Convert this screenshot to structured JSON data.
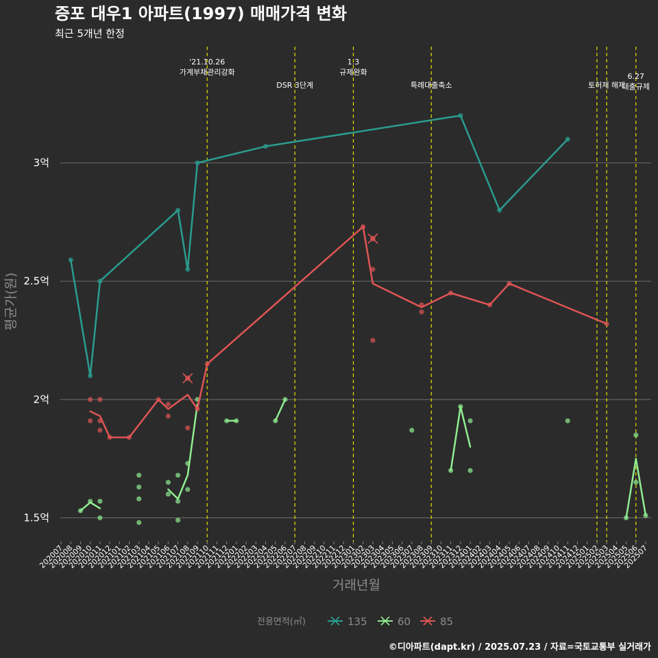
{
  "chart_data": {
    "type": "line",
    "title": "증포 대우1 아파트(1997) 매매가격 변화",
    "subtitle": "최근 5개년 한정",
    "xlabel": "거래년월",
    "ylabel": "평균가(원)",
    "caption": "©디아파트(dapt.kr) / 2025.07.23 / 자료=국토교통부 실거래가",
    "ylim": [
      1.4,
      3.5
    ],
    "yticks": [
      {
        "value": 1.5,
        "label": "1.5억"
      },
      {
        "value": 2.0,
        "label": "2억"
      },
      {
        "value": 2.5,
        "label": "2.5억"
      },
      {
        "value": 3.0,
        "label": "3억"
      }
    ],
    "months": [
      "202007",
      "202008",
      "202009",
      "202010",
      "202011",
      "202012",
      "202101",
      "202102",
      "202103",
      "202104",
      "202105",
      "202106",
      "202107",
      "202108",
      "202109",
      "202110",
      "202111",
      "202112",
      "202201",
      "202202",
      "202203",
      "202204",
      "202205",
      "202206",
      "202207",
      "202208",
      "202209",
      "202210",
      "202211",
      "202212",
      "202301",
      "202302",
      "202303",
      "202304",
      "202305",
      "202306",
      "202307",
      "202308",
      "202309",
      "202310",
      "202311",
      "202312",
      "202401",
      "202402",
      "202403",
      "202404",
      "202405",
      "202406",
      "202407",
      "202408",
      "202409",
      "202410",
      "202411",
      "202412",
      "202501",
      "202502",
      "202503",
      "202504",
      "202505",
      "202506",
      "202507"
    ],
    "events": [
      {
        "month": 15,
        "label": "'21.10.26\n가계부채관리강화"
      },
      {
        "month": 24,
        "label": "DSR 3단계"
      },
      {
        "month": 30,
        "label": "1.3\n규제완화"
      },
      {
        "month": 38,
        "label": "특례대출축소"
      },
      {
        "month": 55,
        "label": ""
      },
      {
        "month": 56,
        "label": "토허제 해제"
      },
      {
        "month": 59,
        "label": "6.27\n대출규제"
      }
    ],
    "legend_title": "전용면적(㎡)",
    "series": [
      {
        "name": "135",
        "color": "#2a9d8f",
        "line": [
          [
            1,
            2.59
          ],
          [
            3,
            2.1
          ],
          [
            4,
            2.5
          ],
          [
            12,
            2.8
          ],
          [
            13,
            2.55
          ],
          [
            14,
            3.0
          ],
          [
            21,
            3.07
          ],
          [
            41,
            3.2
          ],
          [
            45,
            2.8
          ],
          [
            52,
            3.1
          ]
        ],
        "points": [
          [
            1,
            2.59
          ],
          [
            3,
            2.1
          ],
          [
            4,
            2.5
          ],
          [
            12,
            2.8
          ],
          [
            13,
            2.55
          ],
          [
            14,
            3.0
          ],
          [
            21,
            3.07
          ],
          [
            41,
            3.2
          ],
          [
            45,
            2.8
          ],
          [
            52,
            3.1
          ]
        ],
        "cancelled": []
      },
      {
        "name": "60",
        "color": "#90ee90",
        "line_segments": [
          [
            [
              2,
              1.53
            ],
            [
              3,
              1.565
            ],
            [
              4,
              1.54
            ]
          ],
          [
            [
              11,
              1.62
            ],
            [
              12,
              1.58
            ],
            [
              13,
              1.68
            ],
            [
              14,
              1.98
            ]
          ],
          [
            [
              17,
              1.91
            ],
            [
              18,
              1.91
            ]
          ],
          [
            [
              22,
              1.91
            ],
            [
              23,
              2.0
            ]
          ],
          [
            [
              40,
              1.7
            ],
            [
              41,
              1.97
            ],
            [
              42,
              1.8
            ]
          ],
          [
            [
              58,
              1.5
            ],
            [
              59,
              1.75
            ],
            [
              60,
              1.51
            ]
          ]
        ],
        "points": [
          [
            2,
            1.53
          ],
          [
            3,
            1.57
          ],
          [
            4,
            1.5
          ],
          [
            4,
            1.57
          ],
          [
            8,
            1.48
          ],
          [
            8,
            1.58
          ],
          [
            8,
            1.63
          ],
          [
            8,
            1.68
          ],
          [
            11,
            1.6
          ],
          [
            11,
            1.65
          ],
          [
            12,
            1.49
          ],
          [
            12,
            1.57
          ],
          [
            12,
            1.68
          ],
          [
            13,
            1.62
          ],
          [
            13,
            1.73
          ],
          [
            14,
            2.0
          ],
          [
            17,
            1.91
          ],
          [
            18,
            1.91
          ],
          [
            22,
            1.91
          ],
          [
            23,
            2.0
          ],
          [
            36,
            1.87
          ],
          [
            40,
            1.7
          ],
          [
            41,
            1.97
          ],
          [
            42,
            1.7
          ],
          [
            42,
            1.91
          ],
          [
            52,
            1.91
          ],
          [
            58,
            1.5
          ],
          [
            59,
            1.65
          ],
          [
            59,
            1.85
          ],
          [
            60,
            1.51
          ]
        ],
        "cancelled": []
      },
      {
        "name": "85",
        "color": "#e05555",
        "line": [
          [
            3,
            1.95
          ],
          [
            4,
            1.93
          ],
          [
            5,
            1.84
          ],
          [
            7,
            1.84
          ],
          [
            10,
            2.0
          ],
          [
            11,
            1.96
          ],
          [
            13,
            2.02
          ],
          [
            14,
            1.96
          ],
          [
            15,
            2.15
          ],
          [
            31,
            2.73
          ],
          [
            32,
            2.49
          ],
          [
            37,
            2.39
          ],
          [
            40,
            2.45
          ],
          [
            44,
            2.4
          ],
          [
            46,
            2.49
          ],
          [
            56,
            2.32
          ]
        ],
        "points": [
          [
            3,
            2.0
          ],
          [
            3,
            1.91
          ],
          [
            4,
            2.0
          ],
          [
            4,
            1.91
          ],
          [
            4,
            1.87
          ],
          [
            5,
            1.84
          ],
          [
            7,
            1.84
          ],
          [
            10,
            2.0
          ],
          [
            11,
            1.98
          ],
          [
            11,
            1.93
          ],
          [
            13,
            1.88
          ],
          [
            14,
            1.96
          ],
          [
            15,
            2.15
          ],
          [
            31,
            2.73
          ],
          [
            32,
            2.55
          ],
          [
            32,
            2.25
          ],
          [
            37,
            2.4
          ],
          [
            37,
            2.37
          ],
          [
            40,
            2.45
          ],
          [
            44,
            2.4
          ],
          [
            46,
            2.49
          ],
          [
            56,
            2.32
          ]
        ],
        "cancelled": [
          [
            13,
            2.09
          ],
          [
            32,
            2.68
          ]
        ]
      }
    ]
  }
}
